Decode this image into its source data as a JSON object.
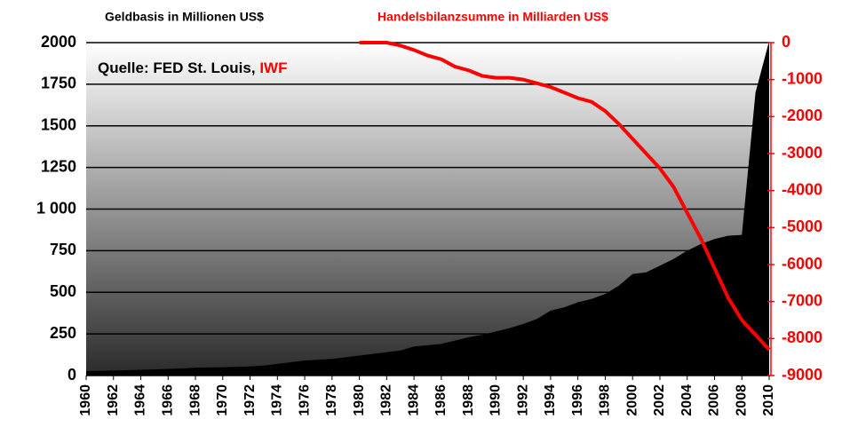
{
  "chart_data": {
    "type": "area",
    "y_label": "Geldbasis in Millionen US$",
    "y2_label": "Handelsbilanzsumme in Milliarden US$",
    "annotation": {
      "source": "Quelle: FED St. Louis,",
      "source_highlight": "IWF"
    },
    "x": [
      1960,
      1961,
      1962,
      1963,
      1964,
      1965,
      1966,
      1967,
      1968,
      1969,
      1970,
      1971,
      1972,
      1973,
      1974,
      1975,
      1976,
      1977,
      1978,
      1979,
      1980,
      1981,
      1982,
      1983,
      1984,
      1985,
      1986,
      1987,
      1988,
      1989,
      1990,
      1991,
      1992,
      1993,
      1994,
      1995,
      1996,
      1997,
      1998,
      1999,
      2000,
      2001,
      2002,
      2003,
      2004,
      2005,
      2006,
      2007,
      2008,
      2009,
      2010
    ],
    "xlim": [
      1960,
      2010
    ],
    "xticks": [
      1960,
      1962,
      1964,
      1966,
      1968,
      1970,
      1972,
      1974,
      1976,
      1978,
      1980,
      1982,
      1984,
      1986,
      1988,
      1990,
      1992,
      1994,
      1996,
      1998,
      2000,
      2002,
      2004,
      2006,
      2008,
      2010
    ],
    "ylim": [
      0,
      2000
    ],
    "yticks": [
      0,
      250,
      500,
      750,
      {
        "value": 1000,
        "label": "1 000"
      },
      1250,
      1500,
      1750,
      2000
    ],
    "y2lim": [
      -9000,
      0
    ],
    "y2ticks": [
      0,
      -1000,
      -2000,
      -3000,
      -4000,
      -5000,
      -6000,
      -7000,
      -8000,
      -9000
    ],
    "grid": true,
    "series": [
      {
        "type": "area",
        "color": "#000000",
        "values": [
          27,
          28,
          30,
          32,
          35,
          37,
          40,
          43,
          47,
          49,
          50,
          52,
          55,
          60,
          70,
          80,
          90,
          95,
          100,
          110,
          120,
          130,
          140,
          150,
          175,
          182,
          190,
          210,
          230,
          245,
          265,
          285,
          310,
          340,
          390,
          410,
          440,
          460,
          490,
          540,
          610,
          620,
          660,
          700,
          750,
          790,
          820,
          840,
          845,
          1700,
          2010
        ]
      },
      {
        "type": "line",
        "color": "#ff0000",
        "axis": "y2",
        "values": [
          null,
          null,
          null,
          null,
          null,
          null,
          null,
          null,
          null,
          null,
          null,
          null,
          null,
          null,
          null,
          null,
          null,
          null,
          null,
          null,
          0,
          0,
          0,
          -80,
          -200,
          -350,
          -450,
          -650,
          -750,
          -900,
          -950,
          -950,
          -1000,
          -1100,
          -1200,
          -1350,
          -1500,
          -1600,
          -1850,
          -2200,
          -2600,
          -3000,
          -3400,
          -3900,
          -4600,
          -5300,
          -6100,
          -6900,
          -7500,
          -7900,
          -8300
        ]
      }
    ]
  }
}
